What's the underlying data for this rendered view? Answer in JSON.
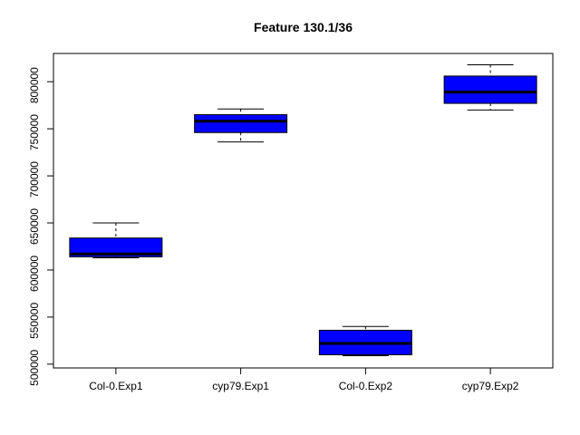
{
  "chart_data": {
    "type": "boxplot",
    "title": "Feature  130.1/36",
    "xlabel": "",
    "ylabel": "",
    "categories": [
      "Col-0.Exp1",
      "cyp79.Exp1",
      "Col-0.Exp2",
      "cyp79.Exp2"
    ],
    "boxes": [
      {
        "category": "Col-0.Exp1",
        "whisker_low": 613000,
        "q1": 614000,
        "median": 617000,
        "q3": 634000,
        "whisker_high": 650000
      },
      {
        "category": "cyp79.Exp1",
        "whisker_low": 736000,
        "q1": 746000,
        "median": 758000,
        "q3": 765000,
        "whisker_high": 771000
      },
      {
        "category": "Col-0.Exp2",
        "whisker_low": 509000,
        "q1": 510000,
        "median": 522000,
        "q3": 536000,
        "whisker_high": 540000
      },
      {
        "category": "cyp79.Exp2",
        "whisker_low": 770000,
        "q1": 777000,
        "median": 789000,
        "q3": 806000,
        "whisker_high": 818000
      }
    ],
    "yticks": [
      500000,
      550000,
      600000,
      650000,
      700000,
      750000,
      800000
    ],
    "ytick_labels": [
      "500000",
      "550000",
      "600000",
      "650000",
      "700000",
      "750000",
      "800000"
    ],
    "ylim": [
      496000,
      830000
    ],
    "box_color": "#0000ff",
    "grid": false,
    "legend": "none"
  }
}
